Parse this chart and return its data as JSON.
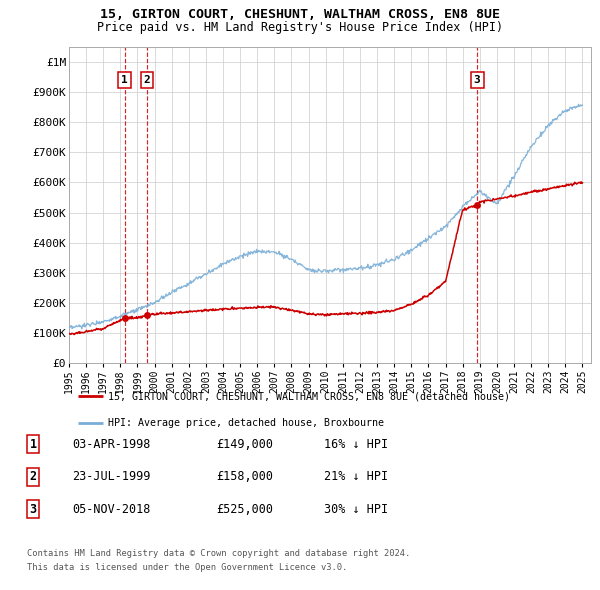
{
  "title1": "15, GIRTON COURT, CHESHUNT, WALTHAM CROSS, EN8 8UE",
  "title2": "Price paid vs. HM Land Registry's House Price Index (HPI)",
  "ylim": [
    0,
    1050000
  ],
  "yticks": [
    0,
    100000,
    200000,
    300000,
    400000,
    500000,
    600000,
    700000,
    800000,
    900000,
    1000000
  ],
  "ytick_labels": [
    "£0",
    "£100K",
    "£200K",
    "£300K",
    "£400K",
    "£500K",
    "£600K",
    "£700K",
    "£800K",
    "£900K",
    "£1M"
  ],
  "xlim_start": 1995.0,
  "xlim_end": 2025.5,
  "xtick_years": [
    1995,
    1996,
    1997,
    1998,
    1999,
    2000,
    2001,
    2002,
    2003,
    2004,
    2005,
    2006,
    2007,
    2008,
    2009,
    2010,
    2011,
    2012,
    2013,
    2014,
    2015,
    2016,
    2017,
    2018,
    2019,
    2020,
    2021,
    2022,
    2023,
    2024,
    2025
  ],
  "sale_dates": [
    1998.253,
    1999.558,
    2018.845
  ],
  "sale_prices": [
    149000,
    158000,
    525000
  ],
  "sale_labels": [
    "1",
    "2",
    "3"
  ],
  "hpi_color": "#7aaed6",
  "sold_color": "#cc0000",
  "dashed_color": "#cc0000",
  "legend_line1": "15, GIRTON COURT, CHESHUNT, WALTHAM CROSS, EN8 8UE (detached house)",
  "legend_line2": "HPI: Average price, detached house, Broxbourne",
  "table_entries": [
    {
      "label": "1",
      "date": "03-APR-1998",
      "price": "£149,000",
      "vs_hpi": "16% ↓ HPI"
    },
    {
      "label": "2",
      "date": "23-JUL-1999",
      "price": "£158,000",
      "vs_hpi": "21% ↓ HPI"
    },
    {
      "label": "3",
      "date": "05-NOV-2018",
      "price": "£525,000",
      "vs_hpi": "30% ↓ HPI"
    }
  ],
  "footnote1": "Contains HM Land Registry data © Crown copyright and database right 2024.",
  "footnote2": "This data is licensed under the Open Government Licence v3.0.",
  "background_color": "#ffffff",
  "grid_color": "#cccccc",
  "hpi_years": [
    1995,
    1996,
    1997,
    1998,
    1999,
    2000,
    2001,
    2002,
    2003,
    2004,
    2005,
    2006,
    2007,
    2008,
    2009,
    2010,
    2011,
    2012,
    2013,
    2014,
    2015,
    2016,
    2017,
    2018,
    2019,
    2020,
    2021,
    2022,
    2023,
    2024,
    2025
  ],
  "hpi_vals": [
    115000,
    125000,
    138000,
    155000,
    175000,
    200000,
    235000,
    265000,
    295000,
    330000,
    355000,
    370000,
    370000,
    345000,
    310000,
    305000,
    310000,
    315000,
    325000,
    345000,
    375000,
    415000,
    455000,
    520000,
    570000,
    530000,
    620000,
    720000,
    790000,
    840000,
    860000
  ],
  "red_years": [
    1995,
    1996,
    1997,
    1998,
    1998.253,
    1999,
    1999.558,
    2000,
    2001,
    2002,
    2003,
    2004,
    2005,
    2006,
    2007,
    2008,
    2009,
    2010,
    2011,
    2012,
    2013,
    2014,
    2015,
    2016,
    2017,
    2018,
    2018.845,
    2019,
    2020,
    2021,
    2022,
    2023,
    2024,
    2025
  ],
  "red_vals": [
    95000,
    103000,
    115000,
    142000,
    149000,
    150000,
    158000,
    162000,
    165000,
    170000,
    175000,
    178000,
    182000,
    185000,
    185000,
    175000,
    162000,
    160000,
    163000,
    165000,
    168000,
    175000,
    195000,
    225000,
    270000,
    510000,
    525000,
    535000,
    545000,
    555000,
    568000,
    578000,
    590000,
    600000
  ]
}
